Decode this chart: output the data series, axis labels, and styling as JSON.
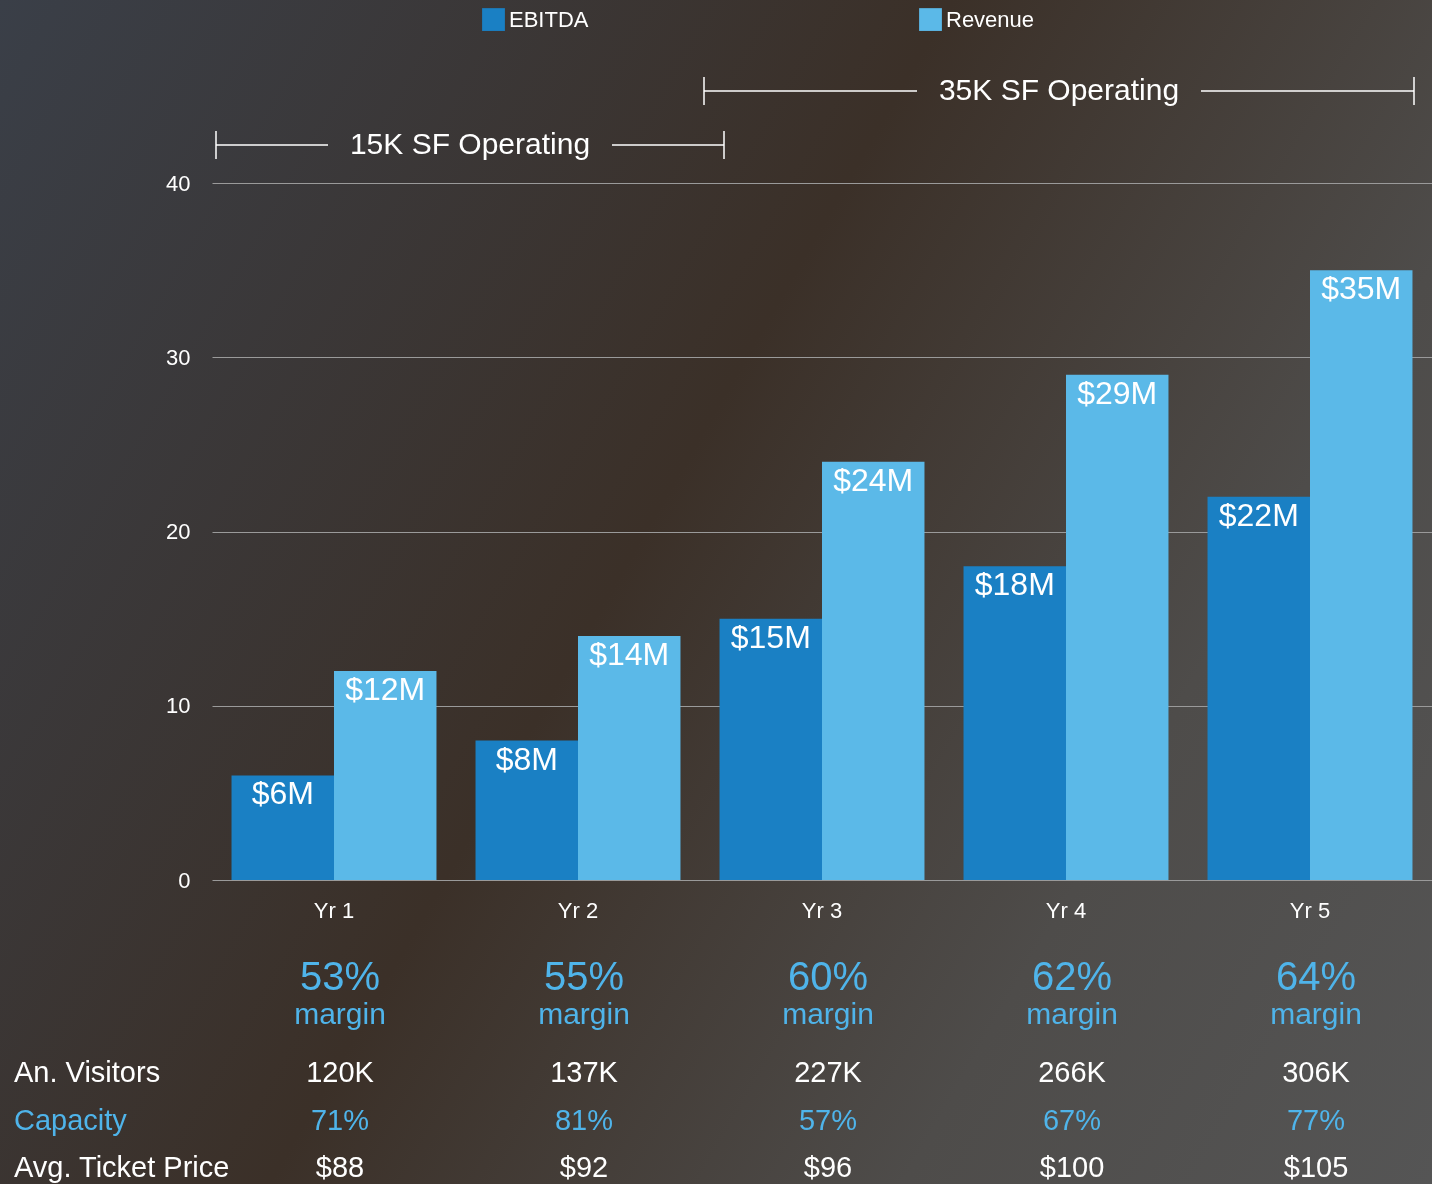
{
  "chart_data": {
    "type": "bar",
    "categories": [
      "Yr 1",
      "Yr 2",
      "Yr 3",
      "Yr 4",
      "Yr 5"
    ],
    "series": [
      {
        "name": "EBITDA",
        "color": "#1a80c4",
        "values": [
          6,
          8,
          15,
          18,
          22
        ],
        "value_labels": [
          "$6M",
          "$8M",
          "$15M",
          "$18M",
          "$22M"
        ]
      },
      {
        "name": "Revenue",
        "color": "#5bb9e8",
        "values": [
          12,
          14,
          24,
          29,
          35
        ],
        "value_labels": [
          "$12M",
          "$14M",
          "$24M",
          "$29M",
          "$35M"
        ]
      }
    ],
    "ylim": [
      0,
      40
    ],
    "yticks": [
      0,
      10,
      20,
      30,
      40
    ],
    "grid": "y",
    "legend": "top",
    "annotations": [
      "15K SF Operating",
      "35K SF Operating",
      "53%",
      "55%",
      "60%",
      "62%",
      "64%",
      "margin",
      "margin",
      "margin",
      "margin",
      "margin",
      "An. Visitors",
      "120K",
      "137K",
      "227K",
      "266K",
      "306K",
      "Capacity",
      "71%",
      "81%",
      "57%",
      "67%",
      "77%",
      "Avg. Ticket Price",
      "$88",
      "$92",
      "$96",
      "$100",
      "$105"
    ]
  }
}
